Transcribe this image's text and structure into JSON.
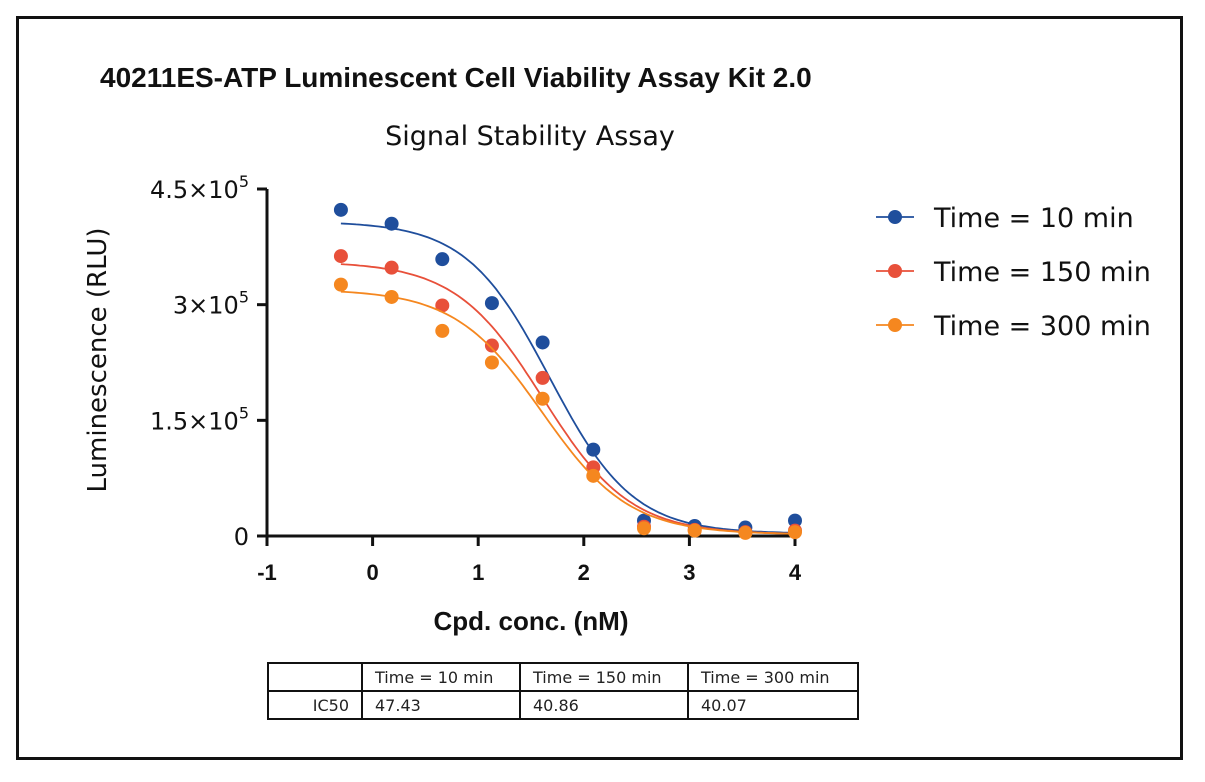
{
  "title": "40211ES-ATP Luminescent Cell Viability Assay Kit 2.0",
  "chart_data": {
    "type": "scatter",
    "subtitle": "Signal Stability Assay",
    "xlabel": "Cpd. conc. (nM)",
    "ylabel": "Luminescence (RLU)",
    "xlim": [
      -1,
      4
    ],
    "ylim": [
      0,
      450000
    ],
    "x_ticks": [
      {
        "value": -1,
        "label": "-1"
      },
      {
        "value": 0,
        "label": "0"
      },
      {
        "value": 1,
        "label": "1"
      },
      {
        "value": 2,
        "label": "2"
      },
      {
        "value": 3,
        "label": "3"
      },
      {
        "value": 4,
        "label": "4"
      }
    ],
    "y_ticks": [
      {
        "value": 0,
        "mant": "0",
        "exp": ""
      },
      {
        "value": 150000,
        "mant": "1.5×10",
        "exp": "5"
      },
      {
        "value": 300000,
        "mant": "3×10",
        "exp": "5"
      },
      {
        "value": 450000,
        "mant": "4.5×10",
        "exp": "5"
      }
    ],
    "legend_position": "right",
    "x": [
      -0.3,
      0.18,
      0.66,
      1.13,
      1.61,
      2.09,
      2.57,
      3.05,
      3.53,
      4.0
    ],
    "series": [
      {
        "name": "Time = 10 min",
        "color": "#1f4e9c",
        "values": [
          423000,
          405000,
          359000,
          302000,
          251000,
          112000,
          20000,
          13000,
          11000,
          20000
        ],
        "fit": {
          "top": 408000,
          "bottom": 3000,
          "logIC50": 1.676,
          "hill": 1.1
        }
      },
      {
        "name": "Time = 150 min",
        "color": "#e8503a",
        "values": [
          363000,
          348000,
          299000,
          247000,
          205000,
          89000,
          12000,
          8000,
          5000,
          7000
        ],
        "fit": {
          "top": 356000,
          "bottom": 2000,
          "logIC50": 1.611,
          "hill": 1.05
        }
      },
      {
        "name": "Time = 300 min",
        "color": "#f5871f",
        "values": [
          326000,
          310000,
          266000,
          225000,
          178000,
          78000,
          10000,
          7000,
          4000,
          5000
        ],
        "fit": {
          "top": 320000,
          "bottom": 2000,
          "logIC50": 1.603,
          "hill": 1.05
        }
      }
    ]
  },
  "ic50_table": {
    "row_label": "IC50",
    "headers": [
      "Time = 10 min",
      "Time = 150 min",
      "Time = 300 min"
    ],
    "values": [
      "47.43",
      "40.86",
      "40.07"
    ]
  }
}
